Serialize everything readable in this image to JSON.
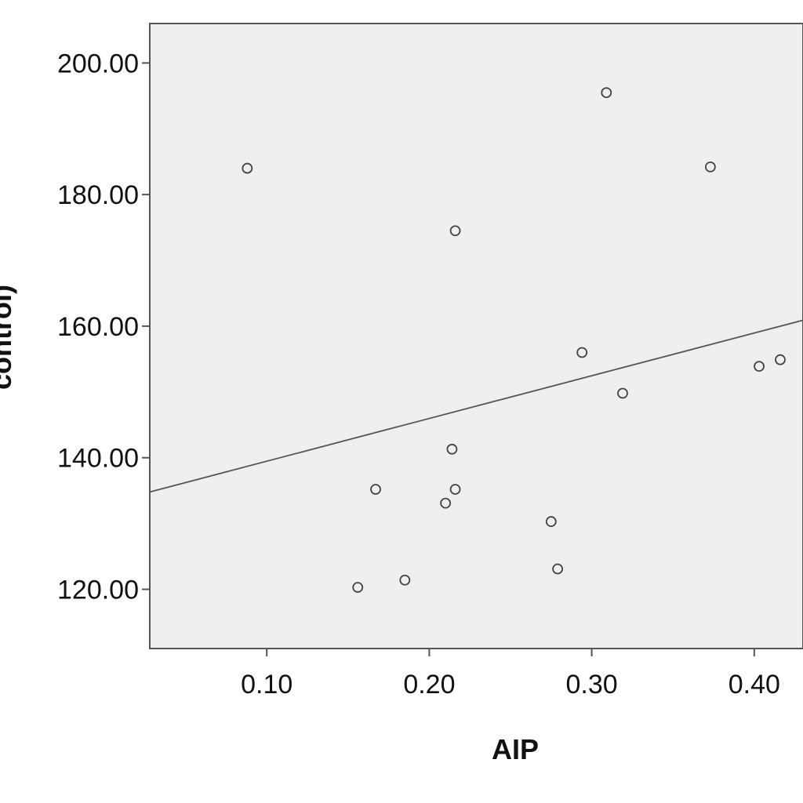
{
  "chart_data": {
    "type": "scatter",
    "title": "",
    "xlabel": "AIP",
    "ylabel": "control)",
    "xlim": [
      0.028,
      0.43
    ],
    "ylim": [
      111,
      206
    ],
    "x_ticks": [
      0.1,
      0.2,
      0.3,
      0.4
    ],
    "x_tick_labels": [
      "0.10",
      "0.20",
      "0.30",
      "0.40"
    ],
    "y_ticks": [
      120,
      140,
      160,
      180,
      200
    ],
    "y_tick_labels": [
      "120.00",
      "140.00",
      "160.00",
      "180.00",
      "200.00"
    ],
    "grid": false,
    "points": [
      {
        "x": 0.088,
        "y": 184.0
      },
      {
        "x": 0.309,
        "y": 195.5
      },
      {
        "x": 0.373,
        "y": 184.2
      },
      {
        "x": 0.216,
        "y": 174.5
      },
      {
        "x": 0.294,
        "y": 156.0
      },
      {
        "x": 0.319,
        "y": 149.8
      },
      {
        "x": 0.403,
        "y": 153.9
      },
      {
        "x": 0.416,
        "y": 154.9
      },
      {
        "x": 0.214,
        "y": 141.3
      },
      {
        "x": 0.167,
        "y": 135.2
      },
      {
        "x": 0.216,
        "y": 135.2
      },
      {
        "x": 0.21,
        "y": 133.1
      },
      {
        "x": 0.275,
        "y": 130.3
      },
      {
        "x": 0.279,
        "y": 123.1
      },
      {
        "x": 0.185,
        "y": 121.4
      },
      {
        "x": 0.156,
        "y": 120.3
      }
    ],
    "fit_line": {
      "x": [
        0.028,
        0.43
      ],
      "y": [
        134.8,
        160.9
      ]
    },
    "colors": {
      "plot_bg": "#efefef",
      "marker": "#444444",
      "line": "#555555",
      "frame": "#555555"
    }
  }
}
